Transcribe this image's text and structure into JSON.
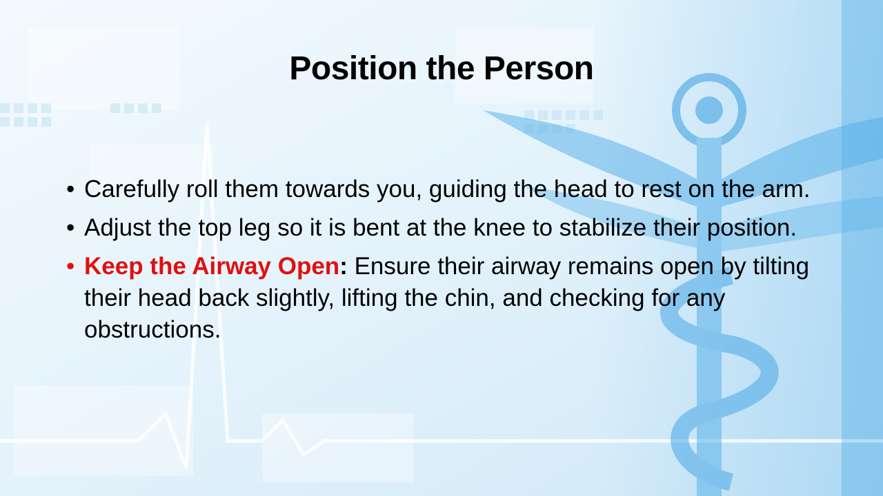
{
  "slide": {
    "title": "Position the Person",
    "bullet_glyph": "•",
    "bullets": [
      {
        "text": "Carefully roll them towards you, guiding the head to rest on the arm."
      },
      {
        "text": "Adjust the top leg so it is bent at the knee to stabilize their position."
      },
      {
        "highlight": "Keep the Airway Open",
        "separator": ":",
        "text": " Ensure their airway remains open by tilting their head back slightly, lifting the chin, and checking for any obstructions."
      }
    ]
  },
  "colors": {
    "highlight": "#e01010",
    "background": "#eaf5fc",
    "accent_blue": "#3a9ee0"
  },
  "background_icons": [
    "caduceus-icon",
    "heartbeat-line-icon"
  ]
}
